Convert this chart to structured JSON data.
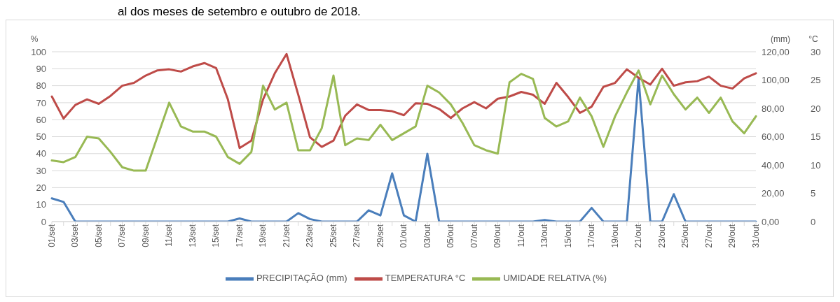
{
  "chart_data": {
    "type": "line",
    "annotations": [
      "al dos meses de setembro e outubro de 2018."
    ],
    "categories": [
      "01/set",
      null,
      "03/set",
      null,
      "05/set",
      null,
      "07/set",
      null,
      "09/set",
      null,
      "11/set",
      null,
      "13/set",
      null,
      "15/set",
      null,
      "17/set",
      null,
      "19/set",
      null,
      "21/set",
      null,
      "23/set",
      null,
      "25/set",
      null,
      "27/set",
      null,
      "29/set",
      null,
      "01/out",
      null,
      "03/out",
      null,
      "05/out",
      null,
      "07/out",
      null,
      "09/out",
      null,
      "11/out",
      null,
      "13/out",
      null,
      "15/out",
      null,
      "17/out",
      null,
      "19/out",
      null,
      "21/out",
      null,
      "23/out",
      null,
      "25/out",
      null,
      "27/out",
      null,
      "29/out",
      null,
      "31/out"
    ],
    "series": [
      {
        "name": "PRECIPITAÇÃO (mm)",
        "color": "#4a7ebb",
        "axis": "y2",
        "values": [
          16.4,
          13.9,
          0,
          0,
          0,
          0,
          0,
          0,
          0,
          0,
          0,
          0,
          0,
          0,
          0,
          0,
          2.2,
          0,
          0,
          0,
          0,
          6,
          1.8,
          0,
          0,
          0,
          0,
          8,
          4.4,
          34.1,
          4.4,
          0,
          47.9,
          0,
          0,
          0,
          0,
          0,
          0,
          0,
          0,
          0,
          1.1,
          0,
          0,
          0,
          9.7,
          0,
          0,
          0,
          101.4,
          0,
          0,
          19.4,
          0,
          0,
          0,
          0,
          0,
          0,
          0
        ]
      },
      {
        "name": "TEMPERATURA °C",
        "color": "#be4b48",
        "axis": "y3",
        "values": [
          22.1,
          18.2,
          20.6,
          21.6,
          20.8,
          22.2,
          24.0,
          24.5,
          25.8,
          26.7,
          26.9,
          26.5,
          27.4,
          28.0,
          27.1,
          21.6,
          13.0,
          14.3,
          21.6,
          26.2,
          29.6,
          22.4,
          14.9,
          13.2,
          14.3,
          18.7,
          20.7,
          19.7,
          19.7,
          19.5,
          18.8,
          20.9,
          20.8,
          19.9,
          18.3,
          20.0,
          21.1,
          20.0,
          21.7,
          22.1,
          22.9,
          22.4,
          20.8,
          24.5,
          22.0,
          19.2,
          20.3,
          23.8,
          24.5,
          26.9,
          25.4,
          24.2,
          27.0,
          24.0,
          24.6,
          24.8,
          25.6,
          24.0,
          23.5,
          25.3,
          26.2
        ]
      },
      {
        "name": "UMIDADE RELATIVA (%)",
        "color": "#98b954",
        "values": [
          36,
          35,
          38,
          50,
          49,
          41,
          32,
          30,
          30,
          50,
          70,
          56,
          53,
          53,
          50,
          38,
          34,
          41,
          80,
          66,
          70,
          42,
          42,
          55,
          86,
          45,
          49,
          48,
          57,
          48,
          52,
          56,
          80,
          76,
          69,
          58,
          45,
          42,
          40,
          82,
          87,
          84,
          61,
          56,
          59,
          73,
          62,
          44,
          62,
          76,
          89,
          69,
          86,
          75,
          66,
          73,
          64,
          73,
          59,
          52,
          62
        ]
      }
    ],
    "ylabel": "%",
    "ylim": [
      0,
      100
    ],
    "yticks": [
      0,
      10,
      20,
      30,
      40,
      50,
      60,
      70,
      80,
      90,
      100
    ],
    "y2label": "(mm)",
    "y2lim": [
      0,
      120
    ],
    "y2ticks": [
      {
        "value": 0,
        "label": "0,00"
      },
      {
        "value": 20,
        "label": "20,00"
      },
      {
        "value": 40,
        "label": "40,00"
      },
      {
        "value": 60,
        "label": "60,00"
      },
      {
        "value": 80,
        "label": "80,00"
      },
      {
        "value": 100,
        "label": "100,00"
      },
      {
        "value": 120,
        "label": "120,00"
      }
    ],
    "y3label": "°C",
    "y3lim": [
      0,
      30
    ],
    "y3ticks": [
      0,
      5,
      10,
      15,
      20,
      25,
      30
    ],
    "grid": "y",
    "legend": "bottom",
    "marker": "none",
    "line_style": "solid"
  }
}
